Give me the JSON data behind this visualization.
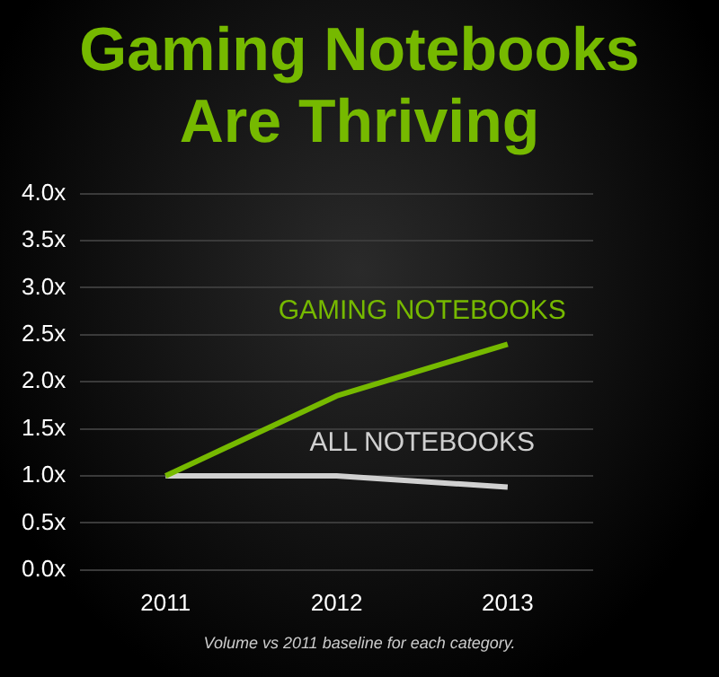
{
  "chart_data": {
    "type": "line",
    "title": "Gaming Notebooks Are Thriving",
    "categories": [
      "2011",
      "2012",
      "2013"
    ],
    "series": [
      {
        "name": "GAMING NOTEBOOKS",
        "color": "#76b900",
        "values": [
          1.0,
          1.85,
          2.4
        ]
      },
      {
        "name": "ALL NOTEBOOKS",
        "color": "#d0d0d0",
        "values": [
          1.0,
          1.0,
          0.88
        ]
      }
    ],
    "ylim": [
      0,
      4
    ],
    "yticks": [
      {
        "value": 0,
        "label": "0.0x"
      },
      {
        "value": 0.5,
        "label": "0.5x"
      },
      {
        "value": 1,
        "label": "1.0x"
      },
      {
        "value": 1.5,
        "label": "1.5x"
      },
      {
        "value": 2,
        "label": "2.0x"
      },
      {
        "value": 2.5,
        "label": "2.5x"
      },
      {
        "value": 3,
        "label": "3.0x"
      },
      {
        "value": 3.5,
        "label": "3.5x"
      },
      {
        "value": 4,
        "label": "4.0x"
      }
    ],
    "grid": "y",
    "legend": false,
    "marker": "none",
    "line_style": "solid",
    "annotations": [
      "Volume vs 2011 baseline for each category."
    ]
  }
}
